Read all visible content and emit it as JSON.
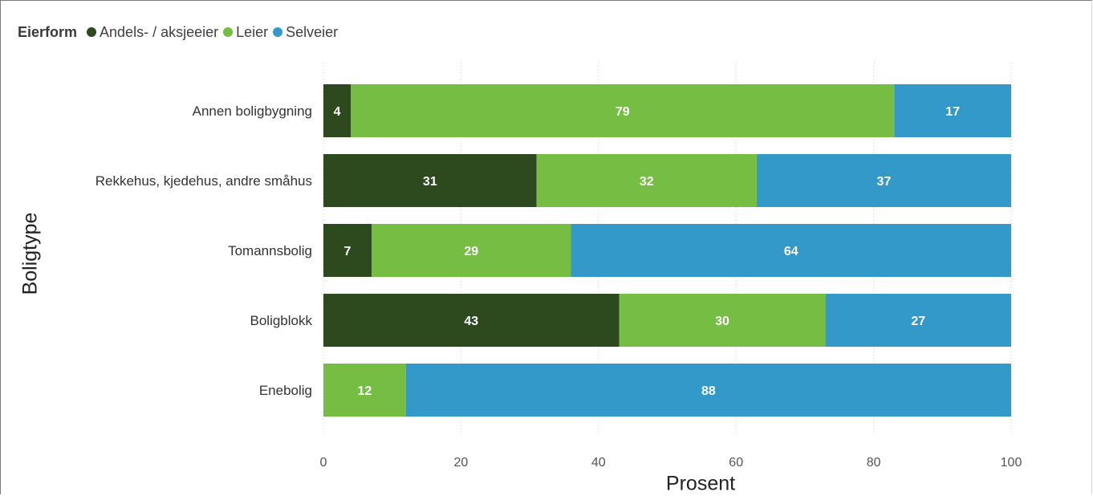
{
  "chart_data": {
    "type": "bar",
    "orientation": "horizontal",
    "stacked": true,
    "legend": {
      "title": "Eierform",
      "placement": "top-left"
    },
    "xlabel": "Prosent",
    "ylabel": "Boligtype",
    "xlim": [
      0,
      100
    ],
    "x_ticks": [
      0,
      20,
      40,
      60,
      80,
      100
    ],
    "grid": "vertical-dotted",
    "categories": [
      "Annen boligbygning",
      "Rekkehus, kjedehus, andre småhus",
      "Tomannsbolig",
      "Boligblokk",
      "Enebolig"
    ],
    "series": [
      {
        "name": "Andels- / aksjeeier",
        "color": "#2d4a1f",
        "values": [
          4,
          31,
          7,
          43,
          0
        ],
        "labels": [
          "4",
          "31",
          "7",
          "43",
          ""
        ]
      },
      {
        "name": "Leier",
        "color": "#76bd43",
        "values": [
          79,
          32,
          29,
          30,
          12
        ],
        "labels": [
          "79",
          "32",
          "29",
          "30",
          "12"
        ]
      },
      {
        "name": "Selveier",
        "color": "#3299c9",
        "values": [
          17,
          37,
          64,
          27,
          88
        ],
        "labels": [
          "17",
          "37",
          "64",
          "27",
          "88"
        ]
      }
    ]
  }
}
